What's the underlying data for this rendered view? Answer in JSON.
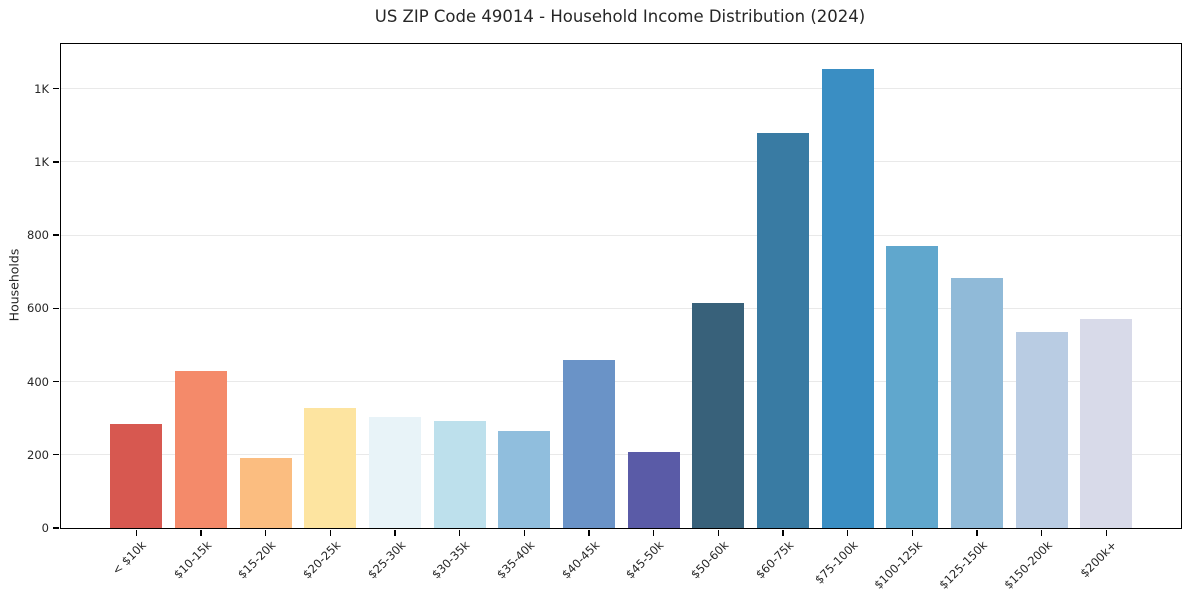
{
  "title": "US ZIP Code 49014 - Household Income Distribution (2024)",
  "chart_data": {
    "type": "bar",
    "title": "US ZIP Code 49014 - Household Income Distribution (2024)",
    "xlabel": "",
    "ylabel": "Households",
    "categories": [
      "< $10k",
      "$10-15k",
      "$15-20k",
      "$20-25k",
      "$25-30k",
      "$30-35k",
      "$35-40k",
      "$40-45k",
      "$45-50k",
      "$50-60k",
      "$60-75k",
      "$75-100k",
      "$100-125k",
      "$125-150k",
      "$150-200k",
      "$200k+"
    ],
    "values": [
      284,
      430,
      190,
      329,
      304,
      291,
      265,
      459,
      208,
      614,
      1078,
      1253,
      770,
      684,
      536,
      572
    ],
    "bar_colors": [
      "#d75850",
      "#f48a6a",
      "#fbbd80",
      "#fde4a0",
      "#e8f3f8",
      "#bde0ec",
      "#90bedd",
      "#6a93c7",
      "#5a5ba7",
      "#38617a",
      "#397ba3",
      "#3a8ec3",
      "#60a7cd",
      "#90bad8",
      "#b9cce3",
      "#d8dae9"
    ],
    "ytick_values": [
      0,
      200,
      400,
      600,
      800,
      1000,
      1200
    ],
    "ytick_labels": [
      "0",
      "200",
      "400",
      "600",
      "800",
      "1K",
      "1K"
    ],
    "ylim": [
      0,
      1322
    ],
    "grid": "horizontal-only",
    "gridline_color": "#e9e9e9",
    "legend": "none",
    "background": "#ffffff"
  }
}
